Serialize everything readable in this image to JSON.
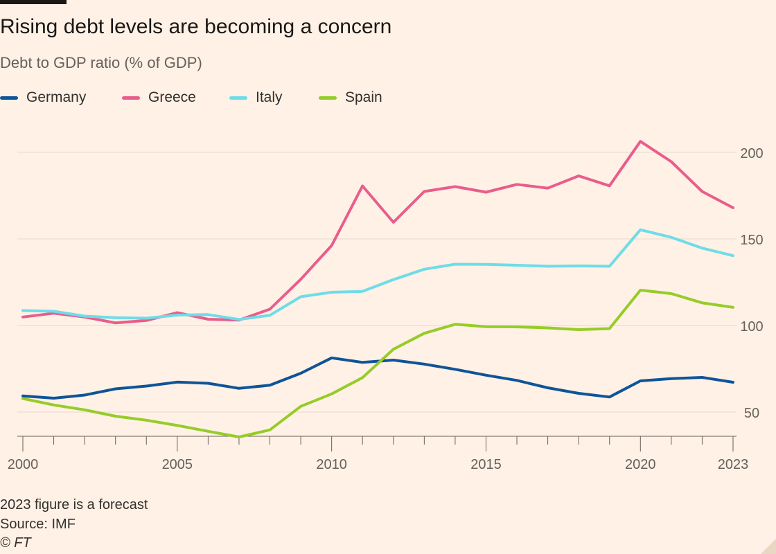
{
  "title": "Rising debt levels are becoming a concern",
  "subtitle": "Debt to GDP ratio (% of GDP)",
  "footnotes": {
    "note": "2023 figure is a forecast",
    "source": "Source: IMF",
    "credit": "© FT"
  },
  "colors": {
    "background": "#fff1e5",
    "grid": "#e6d9ce",
    "axis": "#66605c"
  },
  "chart_data": {
    "type": "line",
    "title": "Rising debt levels are becoming a concern",
    "subtitle": "Debt to GDP ratio (% of GDP)",
    "xlabel": "",
    "ylabel": "",
    "x": [
      2000,
      2001,
      2002,
      2003,
      2004,
      2005,
      2006,
      2007,
      2008,
      2009,
      2010,
      2011,
      2012,
      2013,
      2014,
      2015,
      2016,
      2017,
      2018,
      2019,
      2020,
      2021,
      2022,
      2023
    ],
    "xlim": [
      2000,
      2023
    ],
    "ylim": [
      36,
      224
    ],
    "x_ticks": [
      "2000",
      "2005",
      "2010",
      "2015",
      "2020",
      "2023"
    ],
    "x_tick_values": [
      2000,
      2005,
      2010,
      2015,
      2020,
      2023
    ],
    "y_ticks": [
      "50",
      "100",
      "150",
      "200"
    ],
    "y_tick_values": [
      50,
      100,
      150,
      200
    ],
    "y_axis_side": "right",
    "grid": true,
    "legend_position": "top-left",
    "series": [
      {
        "name": "Germany",
        "color": "#0f5499",
        "values": [
          59.3,
          58.0,
          59.8,
          63.4,
          65.0,
          67.3,
          66.6,
          63.7,
          65.5,
          72.4,
          81.3,
          78.7,
          80.0,
          77.7,
          74.7,
          71.3,
          68.3,
          64.0,
          60.8,
          58.7,
          68.0,
          69.3,
          70.0,
          67.2
        ]
      },
      {
        "name": "Greece",
        "color": "#e95d8c",
        "values": [
          104.9,
          107.1,
          104.9,
          101.5,
          102.9,
          107.4,
          103.6,
          103.1,
          109.4,
          126.7,
          146.2,
          180.6,
          159.6,
          177.4,
          180.2,
          177.0,
          181.5,
          179.3,
          186.4,
          180.7,
          206.3,
          194.6,
          177.4,
          168.0
        ]
      },
      {
        "name": "Italy",
        "color": "#6fdce8",
        "values": [
          108.6,
          108.2,
          105.4,
          104.5,
          104.2,
          106.0,
          106.3,
          103.5,
          105.9,
          116.6,
          119.2,
          119.7,
          126.5,
          132.5,
          135.4,
          135.3,
          134.8,
          134.2,
          134.4,
          134.2,
          155.3,
          150.9,
          144.7,
          140.3
        ]
      },
      {
        "name": "Spain",
        "color": "#96cc28",
        "values": [
          57.8,
          54.1,
          51.3,
          47.6,
          45.3,
          42.3,
          38.9,
          35.6,
          39.7,
          53.3,
          60.5,
          69.9,
          86.3,
          95.5,
          100.7,
          99.3,
          99.2,
          98.6,
          97.6,
          98.2,
          120.4,
          118.4,
          113.1,
          110.5
        ]
      }
    ]
  }
}
